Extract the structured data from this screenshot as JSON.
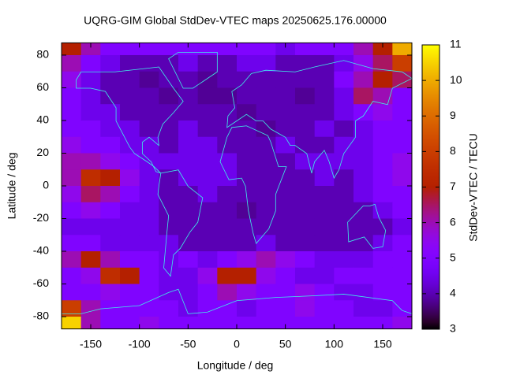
{
  "chart_data": {
    "type": "heatmap",
    "title": "UQRG-GIM Global StdDev-VTEC maps 20250625.176.00000",
    "x_label": "Longitude / deg",
    "y_label": "Latitude / deg",
    "colorbar_label": "StdDev-VTEC / TECU",
    "colormap": "gnuplot",
    "xlim": [
      -180,
      180
    ],
    "ylim": [
      -87.5,
      87.5
    ],
    "cblim": [
      3,
      11
    ],
    "xticks": [
      -150,
      -100,
      -50,
      0,
      50,
      100,
      150
    ],
    "yticks": [
      -80,
      -60,
      -40,
      -20,
      0,
      20,
      40,
      60,
      80
    ],
    "cbticks": [
      3,
      4,
      5,
      6,
      7,
      8,
      9,
      10,
      11
    ],
    "x": [
      -170,
      -150,
      -130,
      -110,
      -90,
      -70,
      -50,
      -30,
      -10,
      10,
      30,
      50,
      70,
      90,
      110,
      130,
      150,
      170
    ],
    "y": [
      85,
      75,
      65,
      55,
      45,
      35,
      25,
      15,
      5,
      -5,
      -15,
      -25,
      -35,
      -45,
      -55,
      -65,
      -75,
      -85
    ],
    "z": [
      [
        7,
        6,
        5,
        5,
        5,
        5,
        5,
        5,
        5,
        5,
        5,
        4.5,
        5,
        5,
        5,
        6,
        7,
        10
      ],
      [
        6,
        5,
        4.5,
        4,
        4,
        4,
        4.5,
        4,
        4,
        4.5,
        4.5,
        4,
        4,
        4,
        4.5,
        5.5,
        6.5,
        8
      ],
      [
        5.5,
        4.5,
        4,
        4,
        3.8,
        4,
        4,
        3.8,
        4,
        4,
        4,
        4,
        4,
        4,
        5,
        6,
        7,
        6.5
      ],
      [
        5,
        4.5,
        4,
        4,
        4,
        3.8,
        4,
        3.8,
        3.8,
        4,
        4,
        4,
        3.8,
        4,
        4.5,
        6.5,
        6,
        5
      ],
      [
        5,
        4.5,
        4.5,
        4,
        4,
        4,
        4,
        4,
        4,
        3.8,
        4,
        4,
        4,
        4,
        4.5,
        5,
        5.5,
        5
      ],
      [
        5,
        5,
        4.5,
        4.5,
        4,
        4,
        4.5,
        4,
        4,
        4,
        3.8,
        4,
        4,
        4.5,
        4,
        4.5,
        5,
        5
      ],
      [
        5.5,
        5,
        5,
        4.5,
        4.5,
        4,
        4.5,
        4.5,
        4,
        4,
        4,
        4.5,
        4,
        4,
        4.5,
        4.5,
        5,
        5
      ],
      [
        6,
        6,
        5.5,
        5,
        4.5,
        4.5,
        4.5,
        4.5,
        4.5,
        4,
        4,
        4,
        4.5,
        4.5,
        4.5,
        4.5,
        5,
        5.5
      ],
      [
        6,
        7.5,
        7,
        5.5,
        4.5,
        4,
        4.5,
        4.5,
        4.5,
        4,
        4,
        4,
        4,
        4.5,
        4,
        4.5,
        5,
        5.5
      ],
      [
        5.5,
        6.5,
        6,
        5,
        4.5,
        4,
        4,
        4.5,
        4,
        4,
        4,
        4,
        4,
        4,
        4,
        4.5,
        5,
        5
      ],
      [
        5,
        5.5,
        5,
        4.5,
        4.5,
        4,
        4,
        4,
        4,
        3.8,
        4,
        4,
        4,
        4,
        4,
        4,
        4.5,
        5
      ],
      [
        4.5,
        4.5,
        4.5,
        4.5,
        4.5,
        4,
        4,
        4,
        4,
        4,
        4,
        4,
        4,
        4,
        4,
        4,
        4,
        4.5
      ],
      [
        5,
        5,
        4.5,
        4.5,
        4.5,
        4.5,
        4,
        4,
        4,
        4,
        4.5,
        4,
        4,
        4,
        4,
        4,
        4.5,
        5
      ],
      [
        6,
        7,
        6,
        5,
        5,
        4.5,
        5,
        4.5,
        5,
        5.5,
        6,
        5.5,
        5,
        4.5,
        4.5,
        4.5,
        5,
        5
      ],
      [
        5,
        5.5,
        7.5,
        7,
        5,
        4.5,
        4.5,
        5.5,
        7,
        7,
        5.5,
        5,
        4.5,
        4.5,
        5,
        5,
        5,
        5
      ],
      [
        5,
        5,
        5.5,
        5,
        5,
        4.5,
        4.5,
        5,
        6,
        5.5,
        5,
        5,
        5.5,
        5,
        4.5,
        4.5,
        5,
        5
      ],
      [
        8,
        6,
        5,
        5,
        5,
        5,
        4.5,
        5,
        5,
        4.5,
        5,
        5,
        5.5,
        5,
        5,
        4.5,
        4.5,
        5
      ],
      [
        10.5,
        6,
        5,
        5,
        5.5,
        5,
        5,
        5,
        5,
        5,
        5,
        5,
        5,
        5,
        5,
        5,
        5,
        5.5
      ]
    ]
  }
}
